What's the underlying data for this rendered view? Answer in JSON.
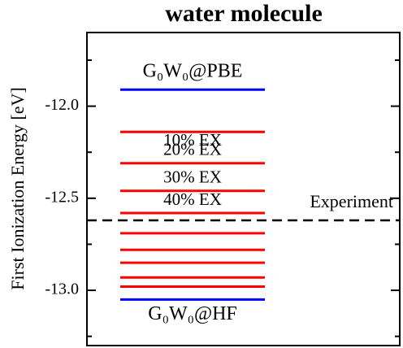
{
  "chart_data": {
    "type": "levels",
    "title": "water molecule",
    "y_label": "First Ionization Energy [eV]",
    "ylim": [
      -13.3,
      -11.6
    ],
    "yticks": [
      {
        "value": -12,
        "label": "-12.0"
      },
      {
        "value": -12.5,
        "label": "-12.5"
      },
      {
        "value": -13,
        "label": "-13.0"
      }
    ],
    "yminor_ticks": [
      -11.75,
      -12.25,
      -12.75,
      -13.25
    ],
    "levels": [
      {
        "label": "G₀W₀@PBE",
        "value": -11.91,
        "color": "#0000ff"
      },
      {
        "label": "10% EX",
        "value": -12.14,
        "color": "#ff0000"
      },
      {
        "label": "20% EX",
        "value": -12.31,
        "color": "#ff0000"
      },
      {
        "label": "30% EX",
        "value": -12.46,
        "color": "#ff0000"
      },
      {
        "label": "40% EX",
        "value": -12.58,
        "color": "#ff0000"
      },
      {
        "value": -12.69,
        "color": "#ff0000"
      },
      {
        "value": -12.78,
        "color": "#ff0000"
      },
      {
        "value": -12.85,
        "color": "#ff0000"
      },
      {
        "value": -12.93,
        "color": "#ff0000"
      },
      {
        "value": -12.98,
        "color": "#ff0000"
      },
      {
        "label": "G₀W₀@HF",
        "value": -13.05,
        "color": "#0000ff"
      }
    ],
    "reference": {
      "label": "Experiment",
      "value": -12.62,
      "color": "#000000",
      "style": "dashed"
    }
  }
}
